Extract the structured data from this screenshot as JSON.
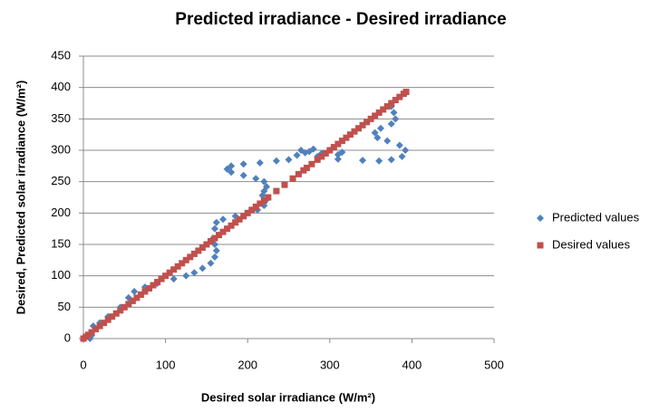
{
  "chart_data": {
    "type": "scatter",
    "title": "Predicted irradiance - Desired irradiance",
    "x_label": "Desired solar irradiance (W/m²)",
    "y_label": "Desired, Predicted solar irradiance (W/m²)",
    "xlim": [
      0,
      500
    ],
    "ylim": [
      0,
      450
    ],
    "xticks": [
      0,
      100,
      200,
      300,
      400,
      500
    ],
    "yticks": [
      0,
      50,
      100,
      150,
      200,
      250,
      300,
      350,
      400,
      450
    ],
    "grid": true,
    "legend": "right",
    "series": [
      {
        "name": "Predicted values",
        "color": "#4f81bd",
        "marker": "diamond",
        "x": [
          8,
          10,
          12,
          20,
          30,
          45,
          55,
          62,
          75,
          90,
          110,
          125,
          135,
          145,
          155,
          160,
          162,
          160,
          158,
          160,
          162,
          170,
          185,
          200,
          212,
          220,
          222,
          218,
          220,
          223,
          220,
          210,
          195,
          180,
          175,
          180,
          195,
          215,
          235,
          250,
          260,
          265,
          280,
          300,
          315,
          310,
          290,
          275,
          270,
          285,
          310,
          340,
          360,
          375,
          388,
          392,
          385,
          370,
          358,
          355,
          362,
          375,
          380,
          378,
          375
        ],
        "values": [
          0,
          5,
          20,
          25,
          35,
          50,
          65,
          75,
          82,
          88,
          95,
          100,
          105,
          112,
          120,
          130,
          140,
          150,
          160,
          175,
          185,
          190,
          195,
          200,
          205,
          212,
          220,
          228,
          235,
          242,
          250,
          255,
          260,
          265,
          270,
          275,
          278,
          280,
          283,
          285,
          292,
          300,
          302,
          300,
          297,
          293,
          295,
          298,
          296,
          290,
          286,
          284,
          283,
          285,
          290,
          300,
          308,
          315,
          320,
          328,
          335,
          342,
          350,
          360,
          370
        ]
      },
      {
        "name": "Desired values",
        "color": "#c0504d",
        "marker": "square",
        "x": [
          0,
          3,
          6,
          10,
          15,
          20,
          25,
          30,
          35,
          40,
          45,
          50,
          55,
          60,
          65,
          70,
          75,
          80,
          85,
          90,
          95,
          100,
          105,
          110,
          115,
          120,
          125,
          130,
          135,
          140,
          145,
          150,
          155,
          160,
          165,
          170,
          175,
          180,
          185,
          190,
          195,
          200,
          205,
          210,
          215,
          220,
          225,
          235,
          245,
          255,
          262,
          268,
          272,
          278,
          285,
          290,
          295,
          300,
          305,
          310,
          315,
          320,
          325,
          330,
          335,
          340,
          345,
          350,
          355,
          360,
          365,
          370,
          375,
          380,
          385,
          390,
          393
        ],
        "values": [
          0,
          3,
          6,
          10,
          15,
          20,
          25,
          30,
          35,
          40,
          45,
          50,
          55,
          60,
          65,
          70,
          75,
          80,
          85,
          90,
          95,
          100,
          105,
          110,
          115,
          120,
          125,
          130,
          135,
          140,
          145,
          150,
          155,
          160,
          165,
          170,
          175,
          180,
          185,
          190,
          195,
          200,
          205,
          210,
          215,
          220,
          225,
          235,
          245,
          255,
          262,
          268,
          272,
          278,
          285,
          290,
          295,
          300,
          305,
          310,
          315,
          320,
          325,
          330,
          335,
          340,
          345,
          350,
          355,
          360,
          365,
          370,
          375,
          380,
          385,
          390,
          393
        ]
      }
    ]
  }
}
